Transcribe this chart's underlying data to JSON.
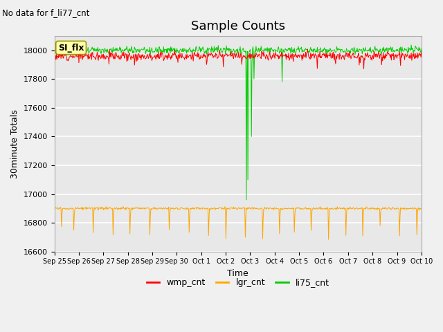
{
  "title": "Sample Counts",
  "top_left_text": "No data for f_li77_cnt",
  "ylabel": "30minute Totals",
  "xlabel": "Time",
  "annotation_text": "SI_flx",
  "ylim": [
    16600,
    18100
  ],
  "x_tick_labels": [
    "Sep 25",
    "Sep 26",
    "Sep 27",
    "Sep 28",
    "Sep 29",
    "Sep 30",
    "Oct 1",
    "Oct 2",
    "Oct 3",
    "Oct 4",
    "Oct 5",
    "Oct 6",
    "Oct 7",
    "Oct 8",
    "Oct 9",
    "Oct 10"
  ],
  "n_points": 720,
  "wmp_base": 17960,
  "wmp_noise": 15,
  "lgr_base": 16900,
  "li75_base": 18000,
  "li75_noise": 12,
  "wmp_color": "#ff0000",
  "lgr_color": "#ffa500",
  "li75_color": "#00cc00",
  "background_color": "#e8e8e8",
  "grid_color": "#ffffff",
  "legend_labels": [
    "wmp_cnt",
    "lgr_cnt",
    "li75_cnt"
  ],
  "title_fontsize": 13,
  "axis_label_fontsize": 9,
  "tick_fontsize": 8
}
